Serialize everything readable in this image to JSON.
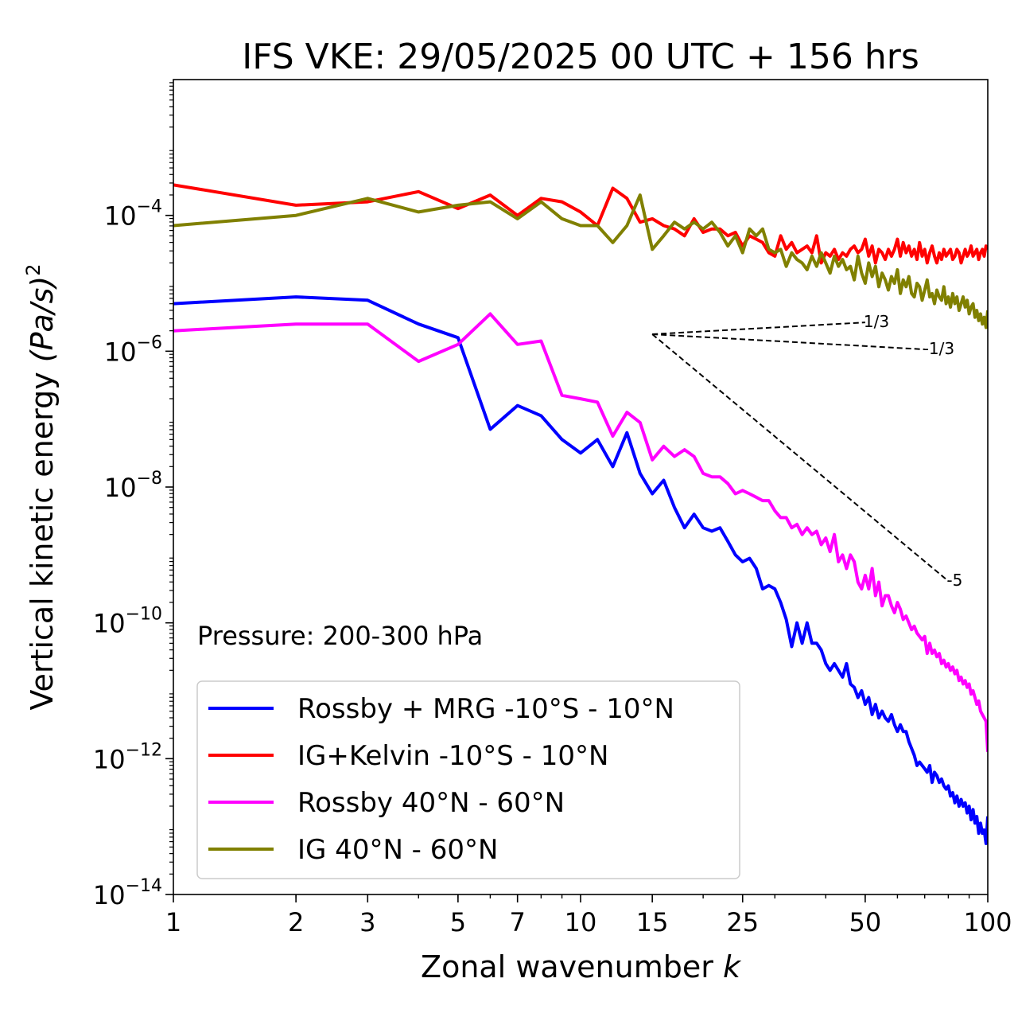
{
  "chart_data": {
    "type": "line",
    "title": "IFS VKE: 29/05/2025 00 UTC + 156 hrs",
    "xlabel": "Zonal wavenumber",
    "xlabel_var": "k",
    "ylabel": "Vertical kinetic energy",
    "ylabel_unit": "(Pa/s)",
    "ylabel_exp": "2",
    "xscale": "log",
    "yscale": "log",
    "xlim": [
      1,
      100
    ],
    "ylim": [
      1e-14,
      0.01
    ],
    "x_ticks": [
      1,
      2,
      3,
      5,
      7,
      10,
      15,
      25,
      50,
      100
    ],
    "x_tick_labels": [
      "1",
      "2",
      "3",
      "5",
      "7",
      "10",
      "15",
      "25",
      "50",
      "100"
    ],
    "y_ticks": [
      -14,
      -12,
      -10,
      -8,
      -6,
      -4
    ],
    "y_tick_base": "10",
    "y_tick_exponents": [
      "−14",
      "−12",
      "−10",
      "−8",
      "−6",
      "−4"
    ],
    "grid": false,
    "legend_position": "lower-left",
    "annotation": "Pressure: 200-300 hPa",
    "series": [
      {
        "name": "Rossby + MRG -10°S - 10°N",
        "color": "#0000ff",
        "log10_y": [
          -5.3,
          -5.2,
          -5.25,
          -5.6,
          -5.8,
          -7.15,
          -6.8,
          -6.95,
          -7.3,
          -7.5,
          -7.3,
          -7.7,
          -7.2,
          -7.8,
          -8.1,
          -7.9,
          -8.3,
          -8.6,
          -8.4,
          -8.6,
          -8.65,
          -8.6,
          -8.8,
          -9.0,
          -9.1,
          -9.05,
          -9.2,
          -9.5,
          -9.45,
          -9.5,
          -9.7,
          -9.95,
          -10.35,
          -10.0,
          -10.3,
          -10.0,
          -10.3,
          -10.3,
          -10.4,
          -10.6,
          -10.7,
          -10.6,
          -10.7,
          -10.8,
          -10.6,
          -10.9,
          -10.95,
          -11.1,
          -11.0,
          -11.2,
          -11.1,
          -11.35,
          -11.2,
          -11.4,
          -11.3,
          -11.4,
          -11.45,
          -11.35,
          -11.5,
          -11.6,
          -11.5,
          -11.6,
          -11.6,
          -11.75,
          -11.85,
          -11.95,
          -12.1,
          -12.05,
          -12.1,
          -12.15,
          -12.2,
          -12.1,
          -12.35,
          -12.2,
          -12.25,
          -12.35,
          -12.3,
          -12.4,
          -12.45,
          -12.4,
          -12.55,
          -12.5,
          -12.65,
          -12.55,
          -12.7,
          -12.6,
          -12.7,
          -12.65,
          -12.8,
          -12.7,
          -12.9,
          -12.75,
          -12.95,
          -12.85,
          -13.1,
          -12.95,
          -13.1,
          -13.05,
          -13.25,
          -12.85
        ]
      },
      {
        "name": "IG+Kelvin -10°S - 10°N",
        "color": "#ff0000",
        "log10_y": [
          -3.55,
          -3.85,
          -3.8,
          -3.65,
          -3.9,
          -3.7,
          -4.0,
          -3.75,
          -3.8,
          -3.95,
          -4.15,
          -3.6,
          -3.75,
          -4.1,
          -4.05,
          -4.15,
          -4.2,
          -4.3,
          -4.05,
          -4.25,
          -4.2,
          -4.2,
          -4.3,
          -4.25,
          -4.45,
          -4.3,
          -4.35,
          -4.4,
          -4.55,
          -4.6,
          -4.3,
          -4.5,
          -4.4,
          -4.55,
          -4.5,
          -4.45,
          -4.55,
          -4.3,
          -4.7,
          -4.55,
          -4.6,
          -4.5,
          -4.65,
          -4.55,
          -4.6,
          -4.5,
          -4.45,
          -4.55,
          -4.5,
          -4.35,
          -4.6,
          -4.45,
          -4.7,
          -4.5,
          -4.55,
          -4.65,
          -4.5,
          -4.6,
          -4.5,
          -4.35,
          -4.6,
          -4.4,
          -4.55,
          -4.45,
          -4.6,
          -4.5,
          -4.65,
          -4.4,
          -4.6,
          -4.5,
          -4.7,
          -4.55,
          -4.45,
          -4.6,
          -4.7,
          -4.55,
          -4.65,
          -4.5,
          -4.6,
          -4.55,
          -4.5,
          -4.65,
          -4.6,
          -4.5,
          -4.55,
          -4.7,
          -4.6,
          -4.5,
          -4.6,
          -4.55,
          -4.45,
          -4.6,
          -4.55,
          -4.5,
          -4.65,
          -4.55,
          -4.5,
          -4.6,
          -4.45,
          -4.5
        ]
      },
      {
        "name": "Rossby 40°N - 60°N",
        "color": "#ff00ff",
        "log10_y": [
          -5.7,
          -5.6,
          -5.6,
          -6.15,
          -5.9,
          -5.45,
          -5.9,
          -5.85,
          -6.65,
          -6.7,
          -6.75,
          -7.25,
          -6.9,
          -7.05,
          -7.6,
          -7.4,
          -7.55,
          -7.45,
          -7.55,
          -7.8,
          -7.85,
          -7.85,
          -7.95,
          -8.1,
          -8.05,
          -8.1,
          -8.15,
          -8.2,
          -8.2,
          -8.35,
          -8.45,
          -8.45,
          -8.6,
          -8.55,
          -8.7,
          -8.6,
          -8.7,
          -8.65,
          -8.85,
          -8.75,
          -8.95,
          -8.7,
          -9.1,
          -9.0,
          -9.2,
          -9.0,
          -9.1,
          -9.4,
          -9.5,
          -9.3,
          -9.5,
          -9.2,
          -9.6,
          -9.4,
          -9.75,
          -9.6,
          -9.6,
          -9.75,
          -9.85,
          -9.7,
          -9.8,
          -9.95,
          -9.9,
          -10.0,
          -10.1,
          -10.05,
          -10.15,
          -10.2,
          -10.25,
          -10.2,
          -10.45,
          -10.3,
          -10.45,
          -10.4,
          -10.5,
          -10.45,
          -10.6,
          -10.55,
          -10.65,
          -10.6,
          -10.7,
          -10.65,
          -10.75,
          -10.7,
          -10.85,
          -10.8,
          -10.9,
          -10.85,
          -10.95,
          -10.9,
          -11.05,
          -11.0,
          -11.1,
          -11.2,
          -11.15,
          -11.3,
          -11.35,
          -11.4,
          -11.45,
          -11.9
        ]
      },
      {
        "name": "IG 40°N - 60°N",
        "color": "#808000",
        "log10_y": [
          -4.15,
          -4.0,
          -3.75,
          -3.95,
          -3.85,
          -3.8,
          -4.05,
          -3.8,
          -4.05,
          -4.15,
          -4.15,
          -4.4,
          -4.15,
          -3.7,
          -4.5,
          -4.3,
          -4.1,
          -4.2,
          -4.1,
          -4.2,
          -4.1,
          -4.25,
          -4.45,
          -4.3,
          -4.55,
          -4.2,
          -4.3,
          -4.2,
          -4.5,
          -4.55,
          -4.5,
          -4.75,
          -4.55,
          -4.65,
          -4.7,
          -4.8,
          -4.6,
          -4.75,
          -4.55,
          -4.7,
          -4.85,
          -4.6,
          -4.75,
          -4.65,
          -4.8,
          -4.75,
          -4.95,
          -4.6,
          -4.85,
          -5.0,
          -4.7,
          -4.9,
          -4.75,
          -5.05,
          -4.85,
          -4.95,
          -5.1,
          -4.9,
          -5.0,
          -4.8,
          -5.15,
          -4.95,
          -5.05,
          -4.9,
          -5.15,
          -5.2,
          -5.0,
          -5.05,
          -5.25,
          -5.1,
          -4.95,
          -5.2,
          -5.15,
          -5.3,
          -5.1,
          -5.2,
          -5.25,
          -5.05,
          -5.3,
          -5.2,
          -5.35,
          -5.15,
          -5.3,
          -5.2,
          -5.4,
          -5.3,
          -5.2,
          -5.35,
          -5.25,
          -5.45,
          -5.35,
          -5.3,
          -5.5,
          -5.4,
          -5.55,
          -5.45,
          -5.6,
          -5.5,
          -5.65,
          -5.4
        ]
      }
    ],
    "reference_slopes": [
      {
        "label": "1/3",
        "x0": 15,
        "log10_y0": -5.75,
        "x1": 50
      },
      {
        "label": "-1/3",
        "x0": 15,
        "log10_y0": -5.75,
        "x1": 70
      },
      {
        "label": "-5",
        "x0": 15,
        "log10_y0": -5.75,
        "x1": 80
      }
    ]
  }
}
